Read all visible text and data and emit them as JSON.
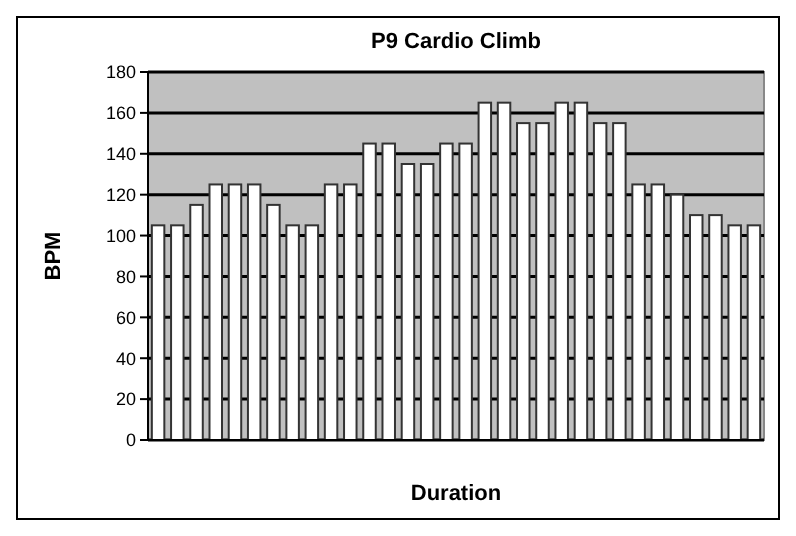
{
  "chart_data": {
    "type": "bar",
    "title": "P9 Cardio Climb",
    "xlabel": "Duration",
    "ylabel": "BPM",
    "categories": [
      null,
      null,
      null,
      null,
      null,
      null,
      null,
      null,
      null,
      null,
      null,
      null,
      null,
      null,
      null,
      null,
      null,
      null,
      null,
      null,
      null,
      null,
      null,
      null,
      null,
      null,
      null,
      null,
      null,
      null,
      null,
      null
    ],
    "values": [
      105,
      105,
      115,
      125,
      125,
      125,
      115,
      105,
      105,
      125,
      125,
      145,
      145,
      135,
      135,
      145,
      145,
      165,
      165,
      155,
      155,
      165,
      165,
      155,
      155,
      125,
      125,
      120,
      110,
      110,
      105,
      105
    ],
    "color": "#ffffff",
    "ylim": [
      0,
      180
    ],
    "yticks": [
      0,
      20,
      40,
      60,
      80,
      100,
      120,
      140,
      160,
      180
    ],
    "grid": "y"
  }
}
